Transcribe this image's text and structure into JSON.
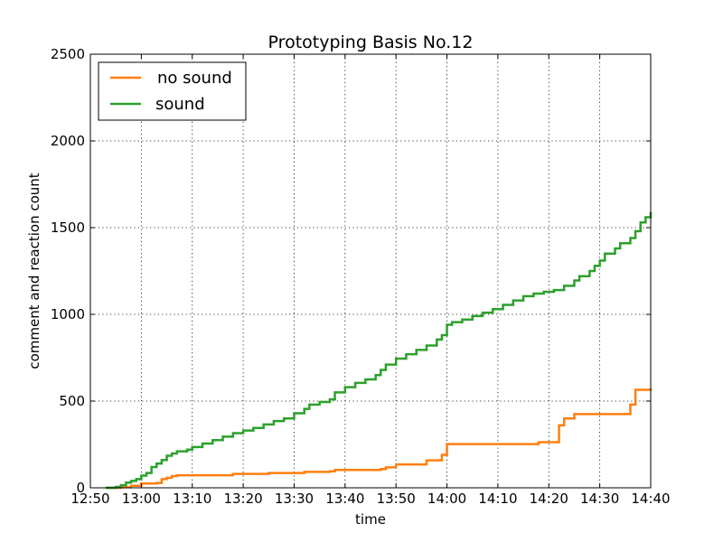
{
  "chart_data": {
    "type": "line",
    "step": true,
    "title": "Prototyping Basis No.12",
    "xlabel": "time",
    "ylabel": "comment and reaction count",
    "xlim": [
      "12:50",
      "14:40"
    ],
    "ylim": [
      0,
      2500
    ],
    "x_ticks": [
      "12:50",
      "13:00",
      "13:10",
      "13:20",
      "13:30",
      "13:40",
      "13:50",
      "14:00",
      "14:10",
      "14:20",
      "14:30",
      "14:40"
    ],
    "y_ticks": [
      0,
      500,
      1000,
      1500,
      2000,
      2500
    ],
    "grid": true,
    "legend_position": "top-left",
    "series": [
      {
        "name": "no sound",
        "color": "#ff7f0e",
        "points": [
          [
            "12:53",
            0
          ],
          [
            "12:56",
            3
          ],
          [
            "12:58",
            12
          ],
          [
            "13:00",
            25
          ],
          [
            "13:03",
            28
          ],
          [
            "13:04",
            50
          ],
          [
            "13:05",
            58
          ],
          [
            "13:06",
            68
          ],
          [
            "13:07",
            72
          ],
          [
            "13:18",
            80
          ],
          [
            "13:25",
            85
          ],
          [
            "13:32",
            92
          ],
          [
            "13:37",
            95
          ],
          [
            "13:38",
            103
          ],
          [
            "13:47",
            108
          ],
          [
            "13:48",
            118
          ],
          [
            "13:50",
            135
          ],
          [
            "13:56",
            158
          ],
          [
            "13:59",
            190
          ],
          [
            "14:00",
            252
          ],
          [
            "14:18",
            263
          ],
          [
            "14:22",
            265
          ],
          [
            "14:22",
            360
          ],
          [
            "14:23",
            400
          ],
          [
            "14:25",
            425
          ],
          [
            "14:36",
            432
          ],
          [
            "14:36",
            480
          ],
          [
            "14:37",
            565
          ],
          [
            "14:40",
            575
          ]
        ]
      },
      {
        "name": "sound",
        "color": "#2ca02c",
        "points": [
          [
            "12:53",
            0
          ],
          [
            "12:55",
            5
          ],
          [
            "12:56",
            15
          ],
          [
            "12:57",
            30
          ],
          [
            "12:58",
            40
          ],
          [
            "12:59",
            50
          ],
          [
            "13:00",
            70
          ],
          [
            "13:01",
            85
          ],
          [
            "13:02",
            120
          ],
          [
            "13:03",
            140
          ],
          [
            "13:04",
            160
          ],
          [
            "13:05",
            185
          ],
          [
            "13:06",
            198
          ],
          [
            "13:07",
            210
          ],
          [
            "13:09",
            220
          ],
          [
            "13:10",
            235
          ],
          [
            "13:12",
            255
          ],
          [
            "13:14",
            275
          ],
          [
            "13:16",
            295
          ],
          [
            "13:18",
            315
          ],
          [
            "13:20",
            330
          ],
          [
            "13:22",
            345
          ],
          [
            "13:24",
            365
          ],
          [
            "13:26",
            385
          ],
          [
            "13:28",
            400
          ],
          [
            "13:30",
            430
          ],
          [
            "13:32",
            455
          ],
          [
            "13:33",
            480
          ],
          [
            "13:35",
            495
          ],
          [
            "13:37",
            510
          ],
          [
            "13:38",
            550
          ],
          [
            "13:40",
            580
          ],
          [
            "13:42",
            605
          ],
          [
            "13:44",
            625
          ],
          [
            "13:46",
            650
          ],
          [
            "13:47",
            680
          ],
          [
            "13:48",
            710
          ],
          [
            "13:50",
            745
          ],
          [
            "13:52",
            770
          ],
          [
            "13:54",
            795
          ],
          [
            "13:56",
            820
          ],
          [
            "13:58",
            855
          ],
          [
            "13:59",
            880
          ],
          [
            "14:00",
            940
          ],
          [
            "14:01",
            955
          ],
          [
            "14:03",
            970
          ],
          [
            "14:05",
            990
          ],
          [
            "14:07",
            1010
          ],
          [
            "14:09",
            1030
          ],
          [
            "14:11",
            1055
          ],
          [
            "14:13",
            1080
          ],
          [
            "14:15",
            1105
          ],
          [
            "14:17",
            1120
          ],
          [
            "14:19",
            1130
          ],
          [
            "14:21",
            1140
          ],
          [
            "14:23",
            1165
          ],
          [
            "14:25",
            1195
          ],
          [
            "14:26",
            1220
          ],
          [
            "14:28",
            1250
          ],
          [
            "14:29",
            1280
          ],
          [
            "14:30",
            1310
          ],
          [
            "14:31",
            1350
          ],
          [
            "14:33",
            1380
          ],
          [
            "14:34",
            1410
          ],
          [
            "14:36",
            1440
          ],
          [
            "14:37",
            1480
          ],
          [
            "14:38",
            1530
          ],
          [
            "14:39",
            1560
          ],
          [
            "14:40",
            1590
          ]
        ]
      }
    ]
  }
}
